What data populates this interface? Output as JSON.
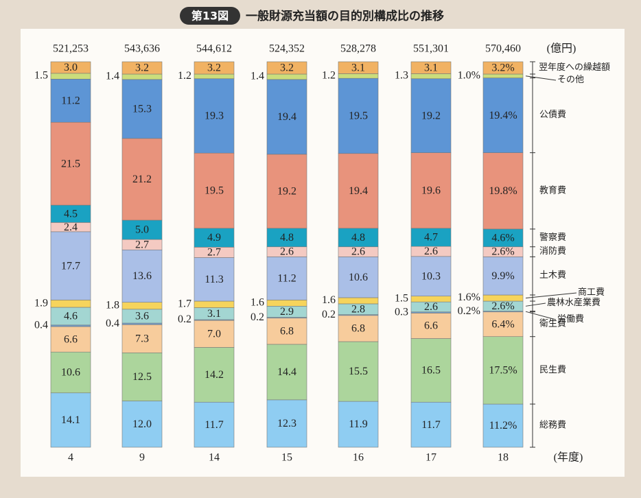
{
  "chart_data": {
    "type": "stacked_bar",
    "badge": "第13図",
    "title": "一般財源充当額の目的別構成比の推移",
    "unit_label": "(億円)",
    "x_label": "(年度)",
    "categories": [
      "4",
      "9",
      "14",
      "15",
      "16",
      "17",
      "18"
    ],
    "totals": {
      "values": [
        521253,
        543636,
        544612,
        524352,
        528278,
        551301,
        570460
      ],
      "value_labels": [
        "521,253",
        "543,636",
        "544,612",
        "524,352",
        "528,278",
        "551,301",
        "570,460"
      ]
    },
    "ylim": [
      0,
      100
    ],
    "series": [
      {
        "name": "総務費",
        "color": "#8fcdf2",
        "values": [
          14.1,
          12.0,
          11.7,
          12.3,
          11.9,
          11.7,
          11.2
        ],
        "value_labels": [
          "14.1",
          "12.0",
          "11.7",
          "12.3",
          "11.9",
          "11.7",
          "11.2%"
        ]
      },
      {
        "name": "民生費",
        "color": "#acd59c",
        "values": [
          10.6,
          12.5,
          14.2,
          14.4,
          15.5,
          16.5,
          17.5
        ],
        "value_labels": [
          "10.6",
          "12.5",
          "14.2",
          "14.4",
          "15.5",
          "16.5",
          "17.5%"
        ]
      },
      {
        "name": "衛生費",
        "color": "#f7cc9c",
        "values": [
          6.6,
          7.3,
          7.0,
          6.8,
          6.8,
          6.6,
          6.4
        ],
        "value_labels": [
          "6.6",
          "7.3",
          "7.0",
          "6.8",
          "6.8",
          "6.6",
          "6.4%"
        ]
      },
      {
        "name": "労働費",
        "color": "#6f9fcf",
        "values": [
          0.4,
          0.4,
          0.2,
          0.2,
          0.2,
          0.3,
          0.2
        ],
        "value_labels": [
          "0.4",
          "0.4",
          "0.2",
          "0.2",
          "0.2",
          "0.3",
          "0.2%"
        ]
      },
      {
        "name": "農林水産業費",
        "color": "#a3d6d2",
        "values": [
          4.6,
          3.6,
          3.1,
          2.9,
          2.8,
          2.6,
          2.6
        ],
        "value_labels": [
          "4.6",
          "3.6",
          "3.1",
          "2.9",
          "2.8",
          "2.6",
          "2.6%"
        ]
      },
      {
        "name": "商工費",
        "color": "#f6d45c",
        "values": [
          1.9,
          1.8,
          1.7,
          1.6,
          1.6,
          1.5,
          1.6
        ],
        "value_labels": [
          "1.9",
          "1.8",
          "1.7",
          "1.6",
          "1.6",
          "1.5",
          "1.6%"
        ]
      },
      {
        "name": "土木費",
        "color": "#aabfe7",
        "values": [
          17.7,
          13.6,
          11.3,
          11.2,
          10.6,
          10.3,
          9.9
        ],
        "value_labels": [
          "17.7",
          "13.6",
          "11.3",
          "11.2",
          "10.6",
          "10.3",
          "9.9%"
        ]
      },
      {
        "name": "消防費",
        "color": "#f4cac2",
        "values": [
          2.4,
          2.7,
          2.7,
          2.6,
          2.6,
          2.6,
          2.6
        ],
        "value_labels": [
          "2.4",
          "2.7",
          "2.7",
          "2.6",
          "2.6",
          "2.6",
          "2.6%"
        ]
      },
      {
        "name": "警察費",
        "color": "#1aa2c2",
        "values": [
          4.5,
          5.0,
          4.9,
          4.8,
          4.8,
          4.7,
          4.6
        ],
        "value_labels": [
          "4.5",
          "5.0",
          "4.9",
          "4.8",
          "4.8",
          "4.7",
          "4.6%"
        ]
      },
      {
        "name": "教育費",
        "color": "#e8937c",
        "values": [
          21.5,
          21.2,
          19.5,
          19.2,
          19.4,
          19.6,
          19.8
        ],
        "value_labels": [
          "21.5",
          "21.2",
          "19.5",
          "19.2",
          "19.4",
          "19.6",
          "19.8%"
        ]
      },
      {
        "name": "公債費",
        "color": "#5d95d5",
        "values": [
          11.2,
          15.3,
          19.3,
          19.4,
          19.5,
          19.2,
          19.4
        ],
        "value_labels": [
          "11.2",
          "15.3",
          "19.3",
          "19.4",
          "19.5",
          "19.2",
          "19.4%"
        ]
      },
      {
        "name": "その他",
        "color": "#cbdd7c",
        "values": [
          1.5,
          1.4,
          1.2,
          1.4,
          1.2,
          1.3,
          1.0
        ],
        "value_labels": [
          "1.5",
          "1.4",
          "1.2",
          "1.4",
          "1.2",
          "1.3",
          "1.0%"
        ]
      },
      {
        "name": "翌年度への繰越額",
        "color": "#f1b263",
        "values": [
          3.0,
          3.2,
          3.2,
          3.2,
          3.1,
          3.1,
          3.2
        ],
        "value_labels": [
          "3.0",
          "3.2",
          "3.2",
          "3.2",
          "3.1",
          "3.1",
          "3.2%"
        ]
      }
    ]
  }
}
